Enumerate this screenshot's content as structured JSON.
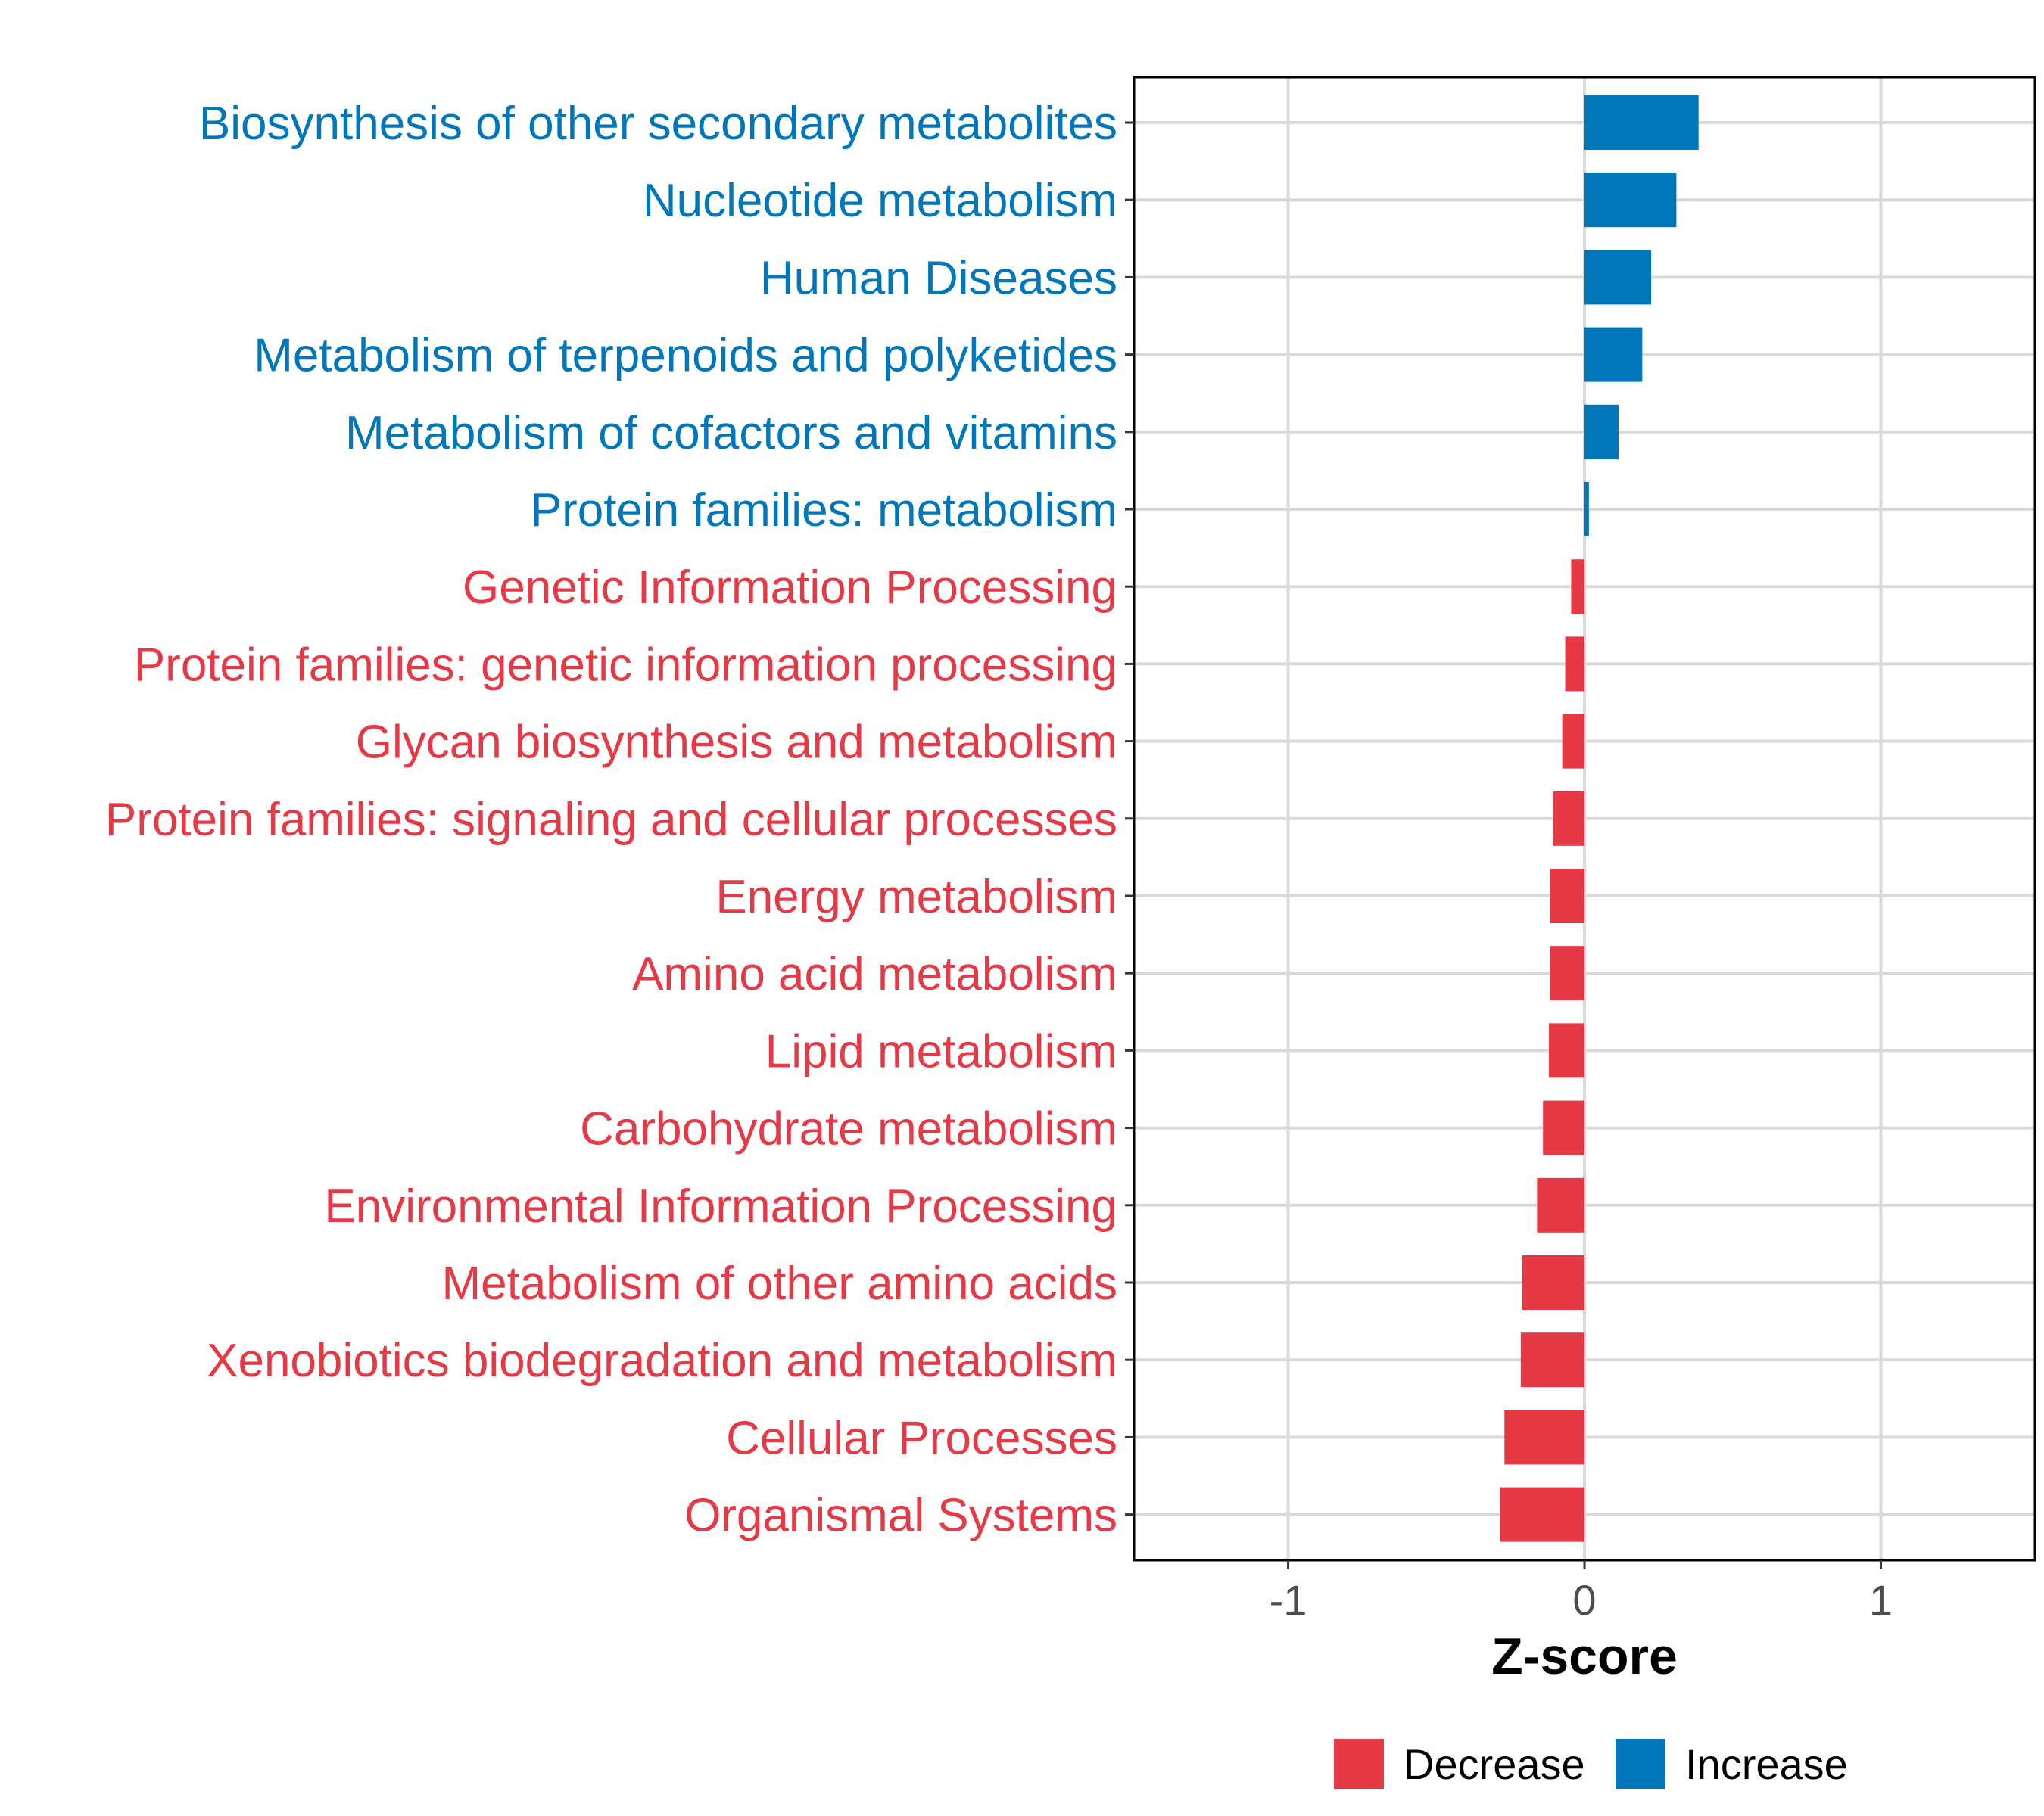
{
  "chart_data": {
    "type": "bar",
    "orientation": "horizontal",
    "title": "",
    "xlabel": "Z-score",
    "ylabel": "",
    "xlim": [
      -1.52,
      1.52
    ],
    "xticks": [
      -1,
      0,
      1
    ],
    "xtick_labels": [
      "-1",
      "0",
      "1"
    ],
    "grid": true,
    "legend_position": "bottom",
    "categories": [
      "Biosynthesis of other secondary metabolites",
      "Nucleotide metabolism",
      "Human Diseases",
      "Metabolism of terpenoids and polyketides",
      "Metabolism of cofactors and vitamins",
      "Protein families: metabolism",
      "Genetic Information Processing",
      "Protein families: genetic information processing",
      "Glycan biosynthesis and metabolism",
      "Protein families: signaling and cellular processes",
      "Energy metabolism",
      "Amino acid metabolism",
      "Lipid metabolism",
      "Carbohydrate metabolism",
      "Environmental Information Processing",
      "Metabolism of other amino acids",
      "Xenobiotics biodegradation and metabolism",
      "Cellular Processes",
      "Organismal Systems"
    ],
    "values": [
      0.385,
      0.31,
      0.225,
      0.195,
      0.115,
      0.015,
      -0.045,
      -0.065,
      -0.075,
      -0.105,
      -0.115,
      -0.115,
      -0.12,
      -0.14,
      -0.16,
      -0.21,
      -0.215,
      -0.27,
      -0.285
    ],
    "groups": [
      "Increase",
      "Increase",
      "Increase",
      "Increase",
      "Increase",
      "Increase",
      "Decrease",
      "Decrease",
      "Decrease",
      "Decrease",
      "Decrease",
      "Decrease",
      "Decrease",
      "Decrease",
      "Decrease",
      "Decrease",
      "Decrease",
      "Decrease",
      "Decrease"
    ],
    "legend": [
      {
        "name": "Decrease",
        "color": "#E63946"
      },
      {
        "name": "Increase",
        "color": "#0077BB"
      }
    ]
  }
}
